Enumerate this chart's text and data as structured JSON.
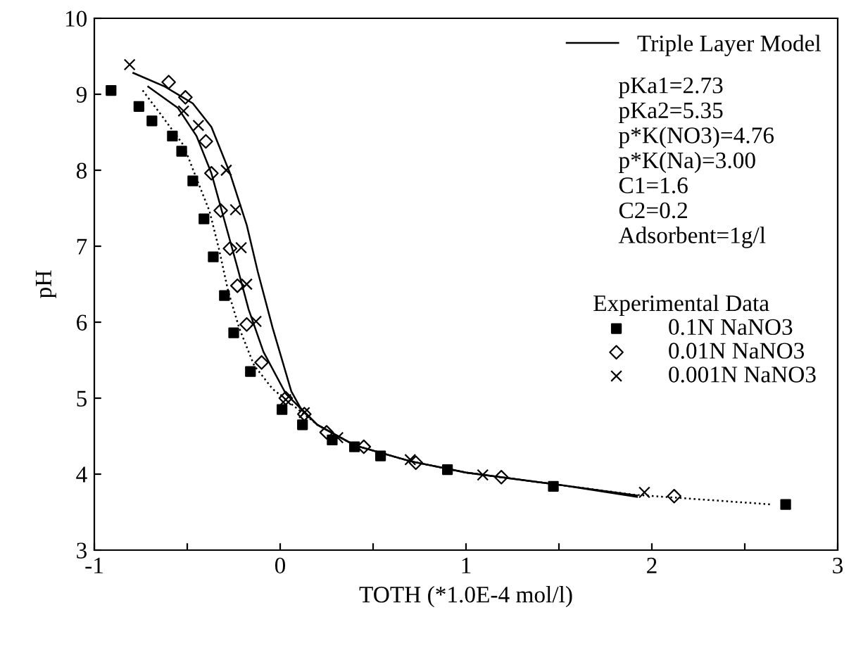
{
  "chart_data": {
    "type": "scatter",
    "xlabel": "TOTH (*1.0E-4 mol/l)",
    "ylabel": "pH",
    "xlim": [
      -1,
      3
    ],
    "ylim": [
      3,
      10
    ],
    "xticks": [
      -1,
      {
        "value": -0.5,
        "label": null
      },
      0,
      {
        "value": 0.5,
        "label": null
      },
      1,
      {
        "value": 1.5,
        "label": null
      },
      2,
      {
        "value": 2.5,
        "label": null
      },
      3
    ],
    "yticks": [
      3,
      4,
      5,
      6,
      7,
      8,
      9,
      10
    ],
    "grid": false,
    "legend": "top right",
    "legend_title": "Experimental Data",
    "annotations": [
      "pKa1=2.73",
      "pKa2=5.35",
      "p*K(NO3)=4.76",
      "p*K(Na)=3.00",
      "C1=1.6",
      "C2=0.2",
      "Adsorbent=1g/l"
    ],
    "series": [
      {
        "type": "line",
        "line_style": "dotted",
        "marker": "none",
        "color": "#000000",
        "x": [
          -0.74,
          -0.65,
          -0.52,
          -0.45,
          -0.38,
          -0.33,
          -0.28,
          -0.22,
          -0.14,
          -0.04,
          0.2,
          0.4,
          0.7,
          1.0,
          1.5,
          1.9,
          2.65
        ],
        "values": [
          9.05,
          8.76,
          8.33,
          7.89,
          7.46,
          6.97,
          6.41,
          5.92,
          5.43,
          5.12,
          4.65,
          4.38,
          4.17,
          4.02,
          3.86,
          3.73,
          3.6
        ]
      },
      {
        "type": "line",
        "name": "Triple Layer Model",
        "line_style": "solid",
        "marker": "none",
        "color": "#000000",
        "x": [
          -0.71,
          -0.55,
          -0.45,
          -0.37,
          -0.3,
          -0.23,
          -0.17,
          -0.09,
          0.03,
          0.2,
          0.4,
          0.7,
          1.0,
          1.5,
          1.92
        ],
        "values": [
          9.1,
          8.82,
          8.45,
          7.96,
          7.34,
          6.72,
          6.17,
          5.61,
          5.06,
          4.65,
          4.38,
          4.17,
          4.02,
          3.86,
          3.72
        ]
      },
      {
        "type": "line",
        "line_style": "solid",
        "marker": "none",
        "color": "#000000",
        "x": [
          -0.79,
          -0.62,
          -0.47,
          -0.37,
          -0.27,
          -0.18,
          -0.12,
          -0.04,
          0.06,
          0.11,
          0.2,
          0.4,
          0.7,
          1.0,
          1.5,
          1.92
        ],
        "values": [
          9.28,
          9.1,
          8.88,
          8.57,
          7.96,
          7.28,
          6.66,
          5.92,
          5.09,
          4.87,
          4.65,
          4.38,
          4.17,
          4.02,
          3.86,
          3.7
        ]
      },
      {
        "name": "0.1N NaNO3",
        "marker": "square",
        "color": "#000000",
        "x": [
          -0.91,
          -0.76,
          -0.69,
          -0.58,
          -0.53,
          -0.47,
          -0.41,
          -0.36,
          -0.3,
          -0.25,
          -0.16,
          0.01,
          0.12,
          0.28,
          0.4,
          0.54,
          0.9,
          1.47,
          2.72
        ],
        "values": [
          9.05,
          8.84,
          8.65,
          8.45,
          8.25,
          7.86,
          7.36,
          6.86,
          6.35,
          5.86,
          5.35,
          4.85,
          4.65,
          4.45,
          4.36,
          4.24,
          4.06,
          3.84,
          3.6
        ]
      },
      {
        "name": "0.01N NaNO3",
        "marker": "diamond",
        "color": "#000000",
        "x": [
          -0.6,
          -0.51,
          -0.4,
          -0.37,
          -0.32,
          -0.27,
          -0.23,
          -0.18,
          -0.1,
          0.03,
          0.13,
          0.25,
          0.45,
          0.73,
          1.19,
          2.12
        ],
        "values": [
          9.16,
          8.96,
          8.38,
          7.96,
          7.47,
          6.97,
          6.48,
          5.97,
          5.47,
          5.0,
          4.79,
          4.55,
          4.36,
          4.15,
          3.96,
          3.71
        ]
      },
      {
        "name": "0.001N NaNO3",
        "marker": "cross",
        "color": "#000000",
        "x": [
          -0.81,
          -0.52,
          -0.44,
          -0.29,
          -0.24,
          -0.21,
          -0.18,
          -0.13,
          0.03,
          0.13,
          0.31,
          0.7,
          1.09,
          1.96
        ],
        "values": [
          9.39,
          8.78,
          8.59,
          8.0,
          7.48,
          6.98,
          6.5,
          6.01,
          4.98,
          4.81,
          4.48,
          4.19,
          3.99,
          3.76
        ]
      }
    ]
  }
}
